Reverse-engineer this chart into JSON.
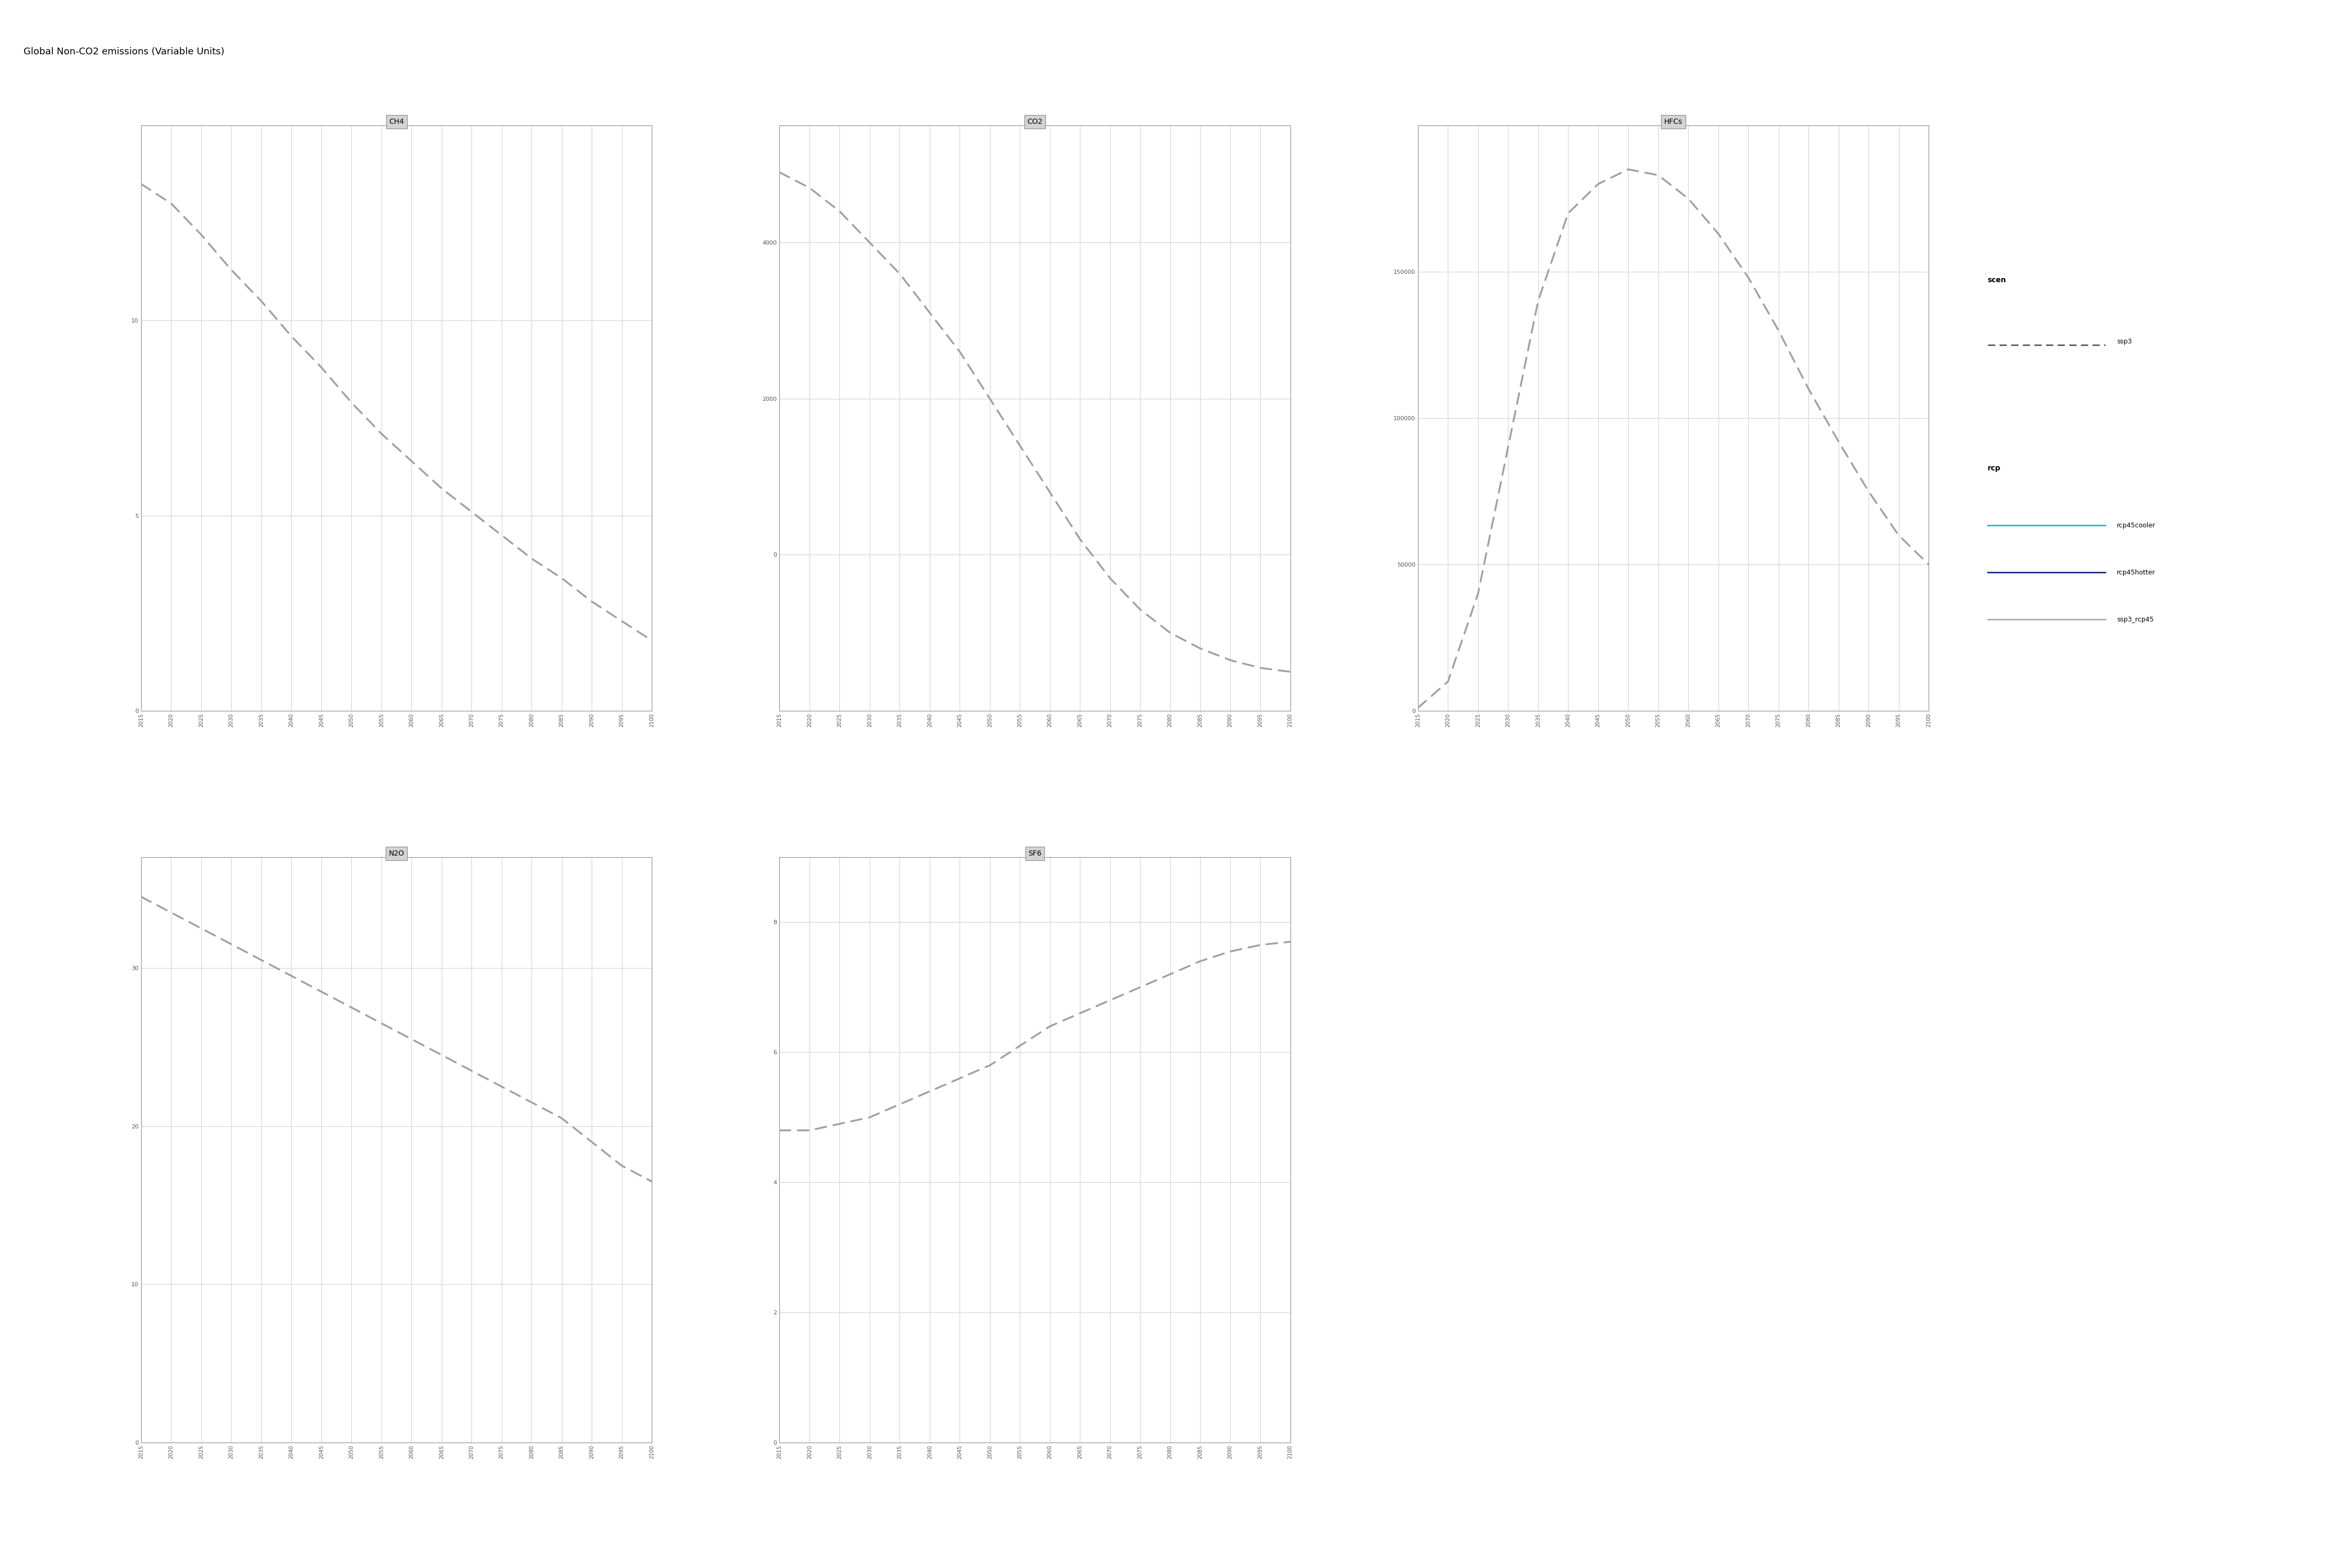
{
  "title": "Global Non-CO2 emissions (Variable Units)",
  "title_fontsize": 13,
  "background_color": "#ffffff",
  "panel_header_color": "#d3d3d3",
  "grid_color": "#cccccc",
  "line_color": "#a0a0a0",
  "years": [
    2015,
    2020,
    2025,
    2030,
    2035,
    2040,
    2045,
    2050,
    2055,
    2060,
    2065,
    2070,
    2075,
    2080,
    2085,
    2090,
    2095,
    2100
  ],
  "CH4": [
    13.5,
    13.0,
    12.2,
    11.3,
    10.5,
    9.6,
    8.8,
    7.9,
    7.1,
    6.4,
    5.7,
    5.1,
    4.5,
    3.9,
    3.4,
    2.8,
    2.3,
    1.8
  ],
  "CH4_ylim": [
    0,
    15
  ],
  "CH4_yticks": [
    0,
    5,
    10
  ],
  "CO2": [
    4900,
    4700,
    4400,
    4000,
    3600,
    3100,
    2600,
    2000,
    1400,
    800,
    200,
    -300,
    -700,
    -1000,
    -1200,
    -1350,
    -1450,
    -1500
  ],
  "CO2_ylim": [
    -2000,
    5500
  ],
  "CO2_yticks": [
    0,
    2000,
    4000
  ],
  "HFCs": [
    1000,
    10000,
    40000,
    90000,
    140000,
    170000,
    180000,
    185000,
    183000,
    175000,
    163000,
    148000,
    130000,
    110000,
    92000,
    75000,
    60000,
    50000
  ],
  "HFCs_ylim": [
    0,
    200000
  ],
  "HFCs_yticks": [
    0,
    50000,
    100000,
    150000
  ],
  "N2O": [
    34.5,
    33.5,
    32.5,
    31.5,
    30.5,
    29.5,
    28.5,
    27.5,
    26.5,
    25.5,
    24.5,
    23.5,
    22.5,
    21.5,
    20.5,
    19.0,
    17.5,
    16.5
  ],
  "N2O_ylim": [
    0,
    37
  ],
  "N2O_yticks": [
    0,
    10,
    20,
    30
  ],
  "SF6": [
    4.8,
    4.8,
    4.9,
    5.0,
    5.2,
    5.4,
    5.6,
    5.8,
    6.1,
    6.4,
    6.6,
    6.8,
    7.0,
    7.2,
    7.4,
    7.55,
    7.65,
    7.7
  ],
  "SF6_ylim": [
    0,
    9
  ],
  "SF6_yticks": [
    0,
    2,
    4,
    6,
    8
  ],
  "legend_scen": [
    [
      "ssp3",
      "#555555",
      "--"
    ]
  ],
  "legend_rcp": [
    [
      "rcp45cooler",
      "#00bcd4",
      "-"
    ],
    [
      "rcp45hotter",
      "#1a237e",
      "-"
    ],
    [
      "ssp3_rcp45",
      "#aaaaaa",
      "-"
    ]
  ]
}
